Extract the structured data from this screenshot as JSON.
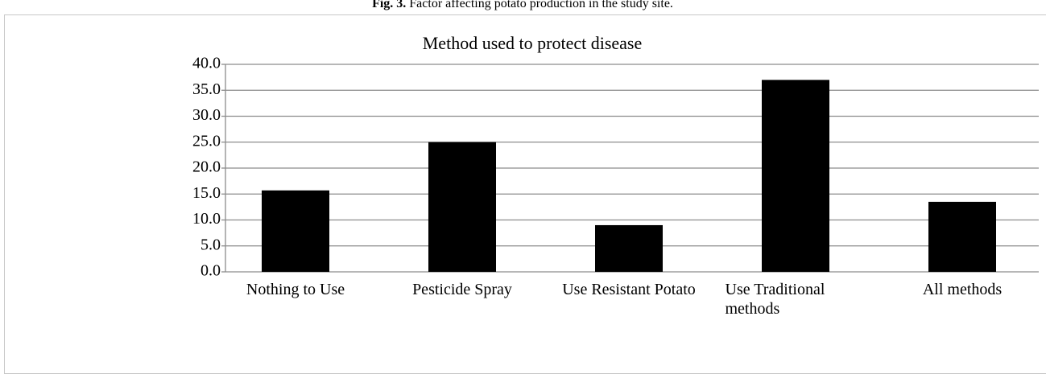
{
  "caption": {
    "label": "Fig. 3.",
    "text": "Factor affecting potato production in the study site."
  },
  "chart_data": {
    "type": "bar",
    "title": "Method used to protect disease",
    "categories": [
      "Nothing to Use",
      "Pesticide Spray",
      "Use Resistant Potato",
      "Use Traditional methods",
      "All methods"
    ],
    "values": [
      15.7,
      25.0,
      9.0,
      37.0,
      13.5
    ],
    "color": "#000000",
    "ylim": [
      0,
      40
    ],
    "yticks": [
      {
        "value": 0,
        "label": "0.0"
      },
      {
        "value": 5,
        "label": "5.0"
      },
      {
        "value": 10,
        "label": "10.0"
      },
      {
        "value": 15,
        "label": "15.0"
      },
      {
        "value": 20,
        "label": "20.0"
      },
      {
        "value": 25,
        "label": "25.0"
      },
      {
        "value": 30,
        "label": "30.0"
      },
      {
        "value": 35,
        "label": "35.0"
      },
      {
        "value": 40,
        "label": "40.0"
      }
    ],
    "grid": true
  }
}
